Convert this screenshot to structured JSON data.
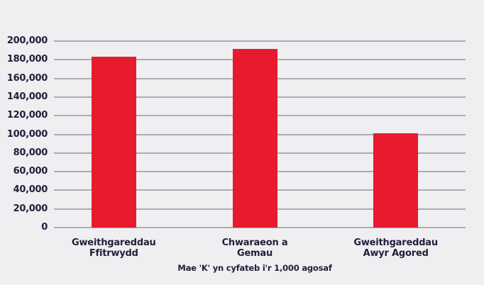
{
  "colors": {
    "background": "#efeff1",
    "bar": "#e71b2d",
    "gridline": "#abacb6",
    "text": "#20203a"
  },
  "chart_data": {
    "type": "bar",
    "title": "",
    "xlabel": "",
    "ylabel": "",
    "categories": [
      "Gweithgareddau Ffitrwydd",
      "Chwaraeon a Gemau",
      "Gweithgareddau Awyr Agored"
    ],
    "category_lines": [
      [
        "Gweithgareddau",
        "Ffitrwydd"
      ],
      [
        "Chwaraeon a",
        "Gemau"
      ],
      [
        "Gweithgareddau",
        "Awyr Agored"
      ]
    ],
    "values": [
      183000,
      192000,
      101000
    ],
    "ylim": [
      0,
      200000
    ],
    "ytick_step": 20000,
    "ytick_labels": [
      "0",
      "20,000",
      "40,000",
      "60,000",
      "80,000",
      "100,000",
      "120,000",
      "140,000",
      "160,000",
      "180,000",
      "200,000"
    ],
    "grid": "horizontal",
    "legend": "none",
    "bar_color": "#e71b2d",
    "footnote": "Mae 'K' yn cyfateb i'r 1,000 agosaf"
  }
}
